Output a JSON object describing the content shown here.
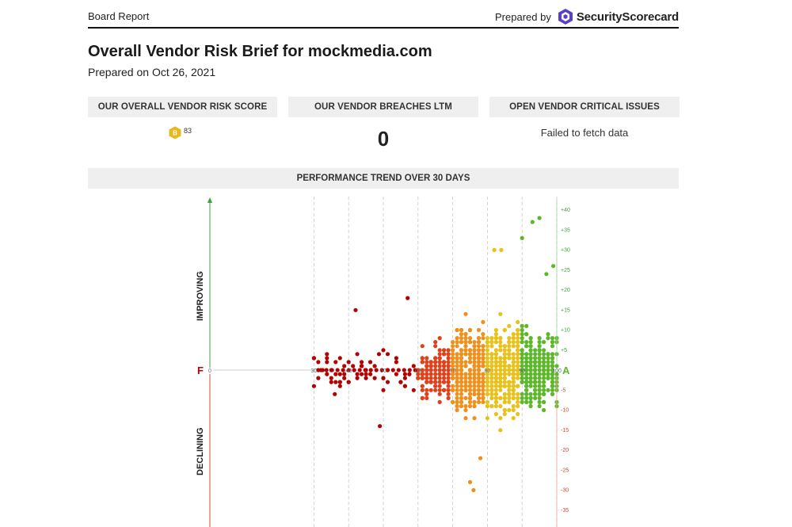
{
  "header": {
    "section": "Board Report",
    "prepared_by": "Prepared by",
    "brand": "SecurityScorecard",
    "brand_logo_icon": "security-scorecard-logo-icon"
  },
  "title": "Overall Vendor Risk Brief for mockmedia.com",
  "subtitle": "Prepared on Oct 26, 2021",
  "kpis": {
    "risk_score": {
      "label": "OUR OVERALL VENDOR RISK SCORE",
      "grade": "B",
      "value": "83",
      "grade_color": "#e6b91e"
    },
    "breaches": {
      "label": "OUR VENDOR BREACHES LTM",
      "value": "0"
    },
    "issues": {
      "label": "OPEN VENDOR CRITICAL ISSUES",
      "value": "Failed to fetch data"
    }
  },
  "trend": {
    "label": "PERFORMANCE TREND OVER 30 DAYS",
    "improving_label": "IMPROVING",
    "declining_label": "DECLINING",
    "grade_low": "F",
    "grade_high": "A"
  },
  "chart_data": {
    "type": "scatter",
    "title": "PERFORMANCE TREND OVER 30 DAYS",
    "xlabel": "",
    "ylabel": "",
    "x_ticks": [
      "0",
      "30",
      "40",
      "50",
      "60",
      "70",
      "80",
      "90",
      "100"
    ],
    "y_ticks": [
      "+40",
      "+35",
      "+30",
      "+25",
      "+20",
      "+15",
      "+10",
      "+5",
      "0",
      "-5",
      "-10",
      "-15",
      "-20",
      "-25",
      "-30",
      "-35"
    ],
    "xlim": [
      0,
      100
    ],
    "ylim": [
      -38,
      42
    ],
    "grid": "vertical dashed",
    "colors": {
      "F": "#b30000",
      "D": "#e0401a",
      "C": "#f0901c",
      "B": "#e8c11a",
      "A": "#5cb82a",
      "improving": "#3fa23f",
      "declining": "#d9452b"
    },
    "bands": [
      {
        "name": "F",
        "x_range": [
          30,
          60
        ],
        "density": 0.22,
        "y_spread": 4.5,
        "count": 65
      },
      {
        "name": "D",
        "x_range": [
          60,
          70
        ],
        "density": 0.55,
        "y_spread": 6,
        "count": 140
      },
      {
        "name": "C",
        "x_range": [
          70,
          80
        ],
        "density": 0.9,
        "y_spread": 8,
        "count": 330
      },
      {
        "name": "B",
        "x_range": [
          80,
          90
        ],
        "density": 0.95,
        "y_spread": 9,
        "count": 330
      },
      {
        "name": "A",
        "x_range": [
          90,
          100
        ],
        "density": 0.95,
        "y_spread": 7,
        "count": 260
      }
    ],
    "outliers": [
      {
        "x": 42,
        "y": 15
      },
      {
        "x": 57,
        "y": 18
      },
      {
        "x": 49,
        "y": -14
      },
      {
        "x": 78,
        "y": -22
      },
      {
        "x": 75,
        "y": -28
      },
      {
        "x": 76,
        "y": -30
      },
      {
        "x": 82,
        "y": 30
      },
      {
        "x": 84,
        "y": 30
      },
      {
        "x": 90,
        "y": 33
      },
      {
        "x": 93,
        "y": 37
      },
      {
        "x": 95,
        "y": 38
      },
      {
        "x": 99,
        "y": 26
      },
      {
        "x": 97,
        "y": 24
      },
      {
        "x": 36,
        "y": -6
      }
    ]
  }
}
